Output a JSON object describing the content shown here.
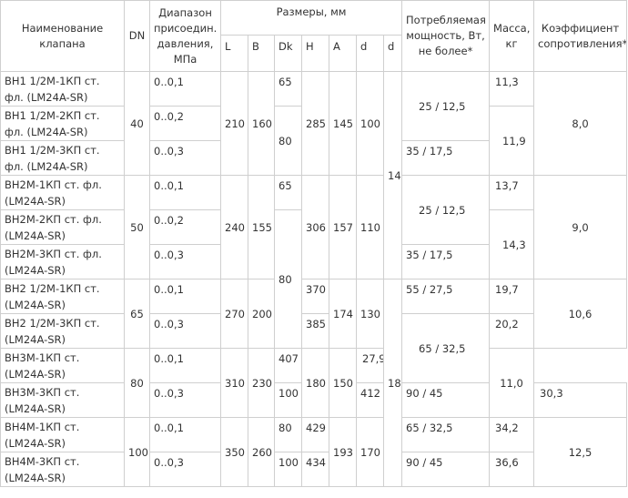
{
  "header": {
    "name": "Наименование клапана",
    "dn": "DN",
    "range": "Диапазон присоедин. давления, МПа",
    "sizes": "Размеры, мм",
    "L": "L",
    "B": "B",
    "Dk": "Dk",
    "H": "H",
    "A": "A",
    "d1": "d",
    "d2": "d",
    "power": "Потребляемая мощность, Вт, не более*",
    "mass": "Масса, кг",
    "coef": "Коэффициент сопротивления**"
  },
  "rows": [
    {
      "name": "ВН1 1/2М-1КП ст. фл. (LM24A-SR)",
      "range": "0..0,1",
      "dk": "65",
      "power": "",
      "mass": "11,3"
    },
    {
      "name": "ВН1 1/2М-2КП ст. фл. (LM24A-SR)",
      "range": "0..0,2",
      "dk": "",
      "power": "",
      "mass": ""
    },
    {
      "name": "ВН1 1/2М-3КП ст. фл. (LM24A-SR)",
      "range": "0..0,3",
      "dk": "",
      "power": "35 / 17,5",
      "mass": ""
    },
    {
      "name": "ВН2М-1КП ст. фл. (LM24A-SR)",
      "range": "0..0,1",
      "dk": "65",
      "power": "",
      "mass": "13,7"
    },
    {
      "name": "ВН2М-2КП ст. фл. (LM24A-SR)",
      "range": "0..0,2",
      "dk": "",
      "power": "",
      "mass": ""
    },
    {
      "name": "ВН2М-3КП ст. фл. (LM24A-SR)",
      "range": "0..0,3",
      "dk": "",
      "power": "35 / 17,5",
      "mass": ""
    },
    {
      "name": "ВН2 1/2М-1КП ст. (LM24A-SR)",
      "range": "0..0,1",
      "h": "370",
      "power": "55 / 27,5",
      "mass": "19,7"
    },
    {
      "name": "ВН2 1/2М-3КП ст. (LM24A-SR)",
      "range": "0..0,3",
      "h": "385",
      "mass": "20,2"
    },
    {
      "name": "ВН3М-1КП ст. (LM24A-SR)",
      "range": "0..0,1",
      "h": "407",
      "mass": "27,9"
    },
    {
      "name": "ВН3М-3КП ст. (LM24A-SR)",
      "range": "0..0,3",
      "dk": "100",
      "h": "412",
      "power": "90 / 45",
      "mass": "30,3"
    },
    {
      "name": "ВН4М-1КП ст. (LM24A-SR)",
      "range": "0..0,1",
      "dk": "80",
      "h": "429",
      "power": "65 / 32,5",
      "mass": "34,2"
    },
    {
      "name": "ВН4М-3КП ст. (LM24A-SR)",
      "range": "0..0,3",
      "dk": "100",
      "h": "434",
      "power": "90 / 45",
      "mass": "36,6"
    }
  ],
  "groups": [
    {
      "dn": "40",
      "L": "210",
      "B": "160",
      "dk_merged": "80",
      "H": "285",
      "A": "145",
      "d1": "100",
      "power_merged": "25 / 12,5",
      "mass_merged": "11,9",
      "coef": "8,0"
    },
    {
      "dn": "50",
      "L": "240",
      "B": "155",
      "dk_merged": "",
      "H": "306",
      "A": "157",
      "d1": "110",
      "power_merged": "25 / 12,5",
      "mass_merged": "14,3",
      "coef": "9,0"
    },
    {
      "dn": "65",
      "L": "270",
      "B": "200",
      "A": "174",
      "d1": "130",
      "coef": "10,6"
    },
    {
      "dn": "80",
      "L": "310",
      "B": "230",
      "A": "180",
      "d1": "150",
      "coef": "11,0"
    },
    {
      "dn": "100",
      "L": "350",
      "B": "260",
      "A": "193",
      "d1": "170",
      "coef": "12,5"
    }
  ],
  "dk_80_span": "80",
  "power_65": "65 / 32,5",
  "d2_top": "14",
  "d2_bottom": "18"
}
